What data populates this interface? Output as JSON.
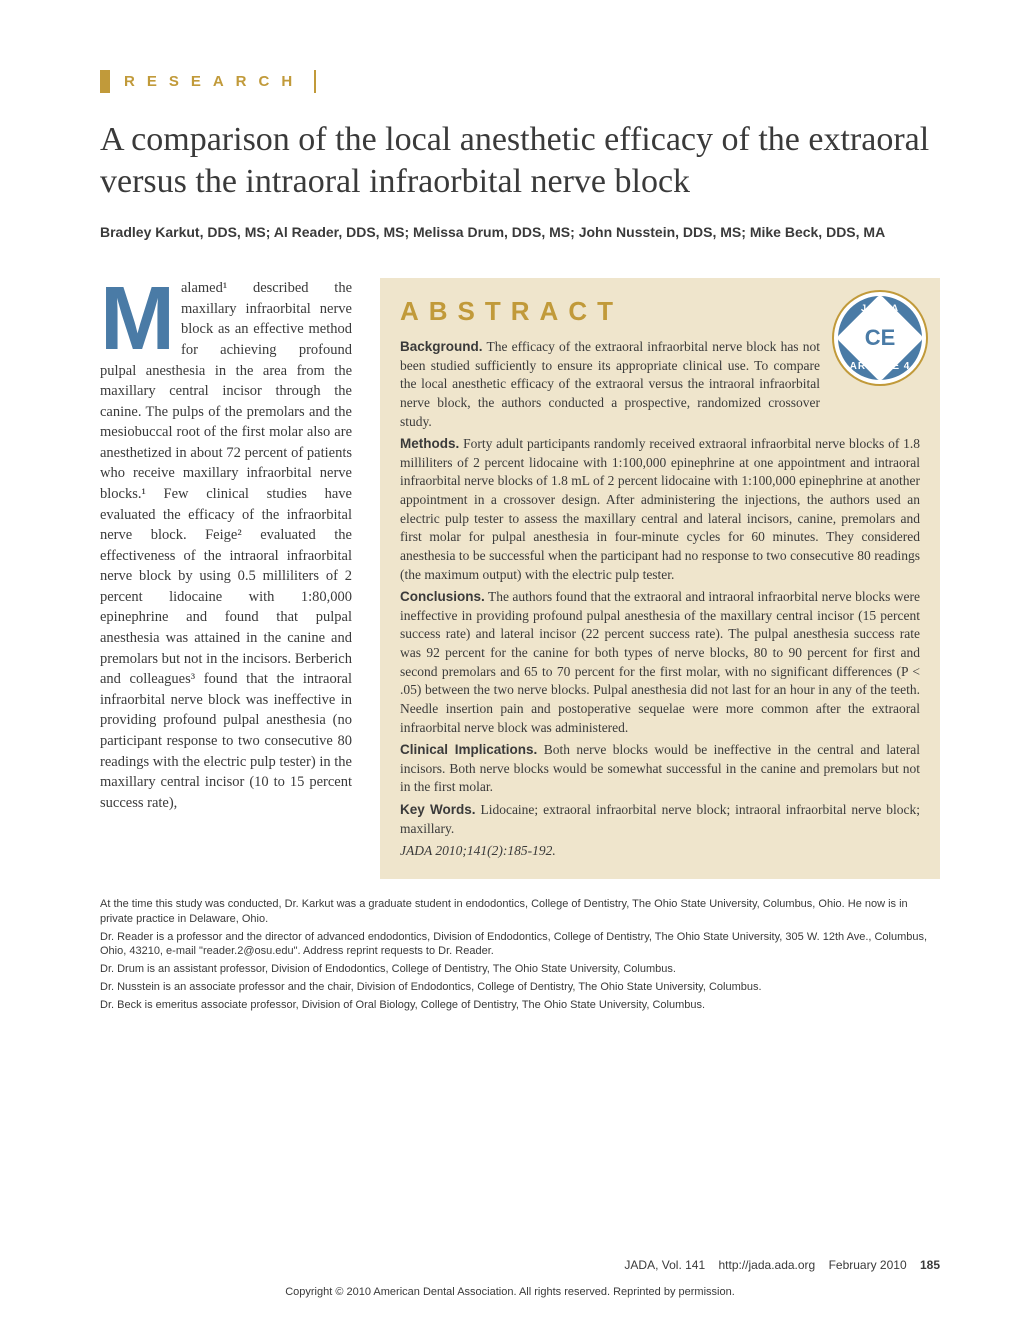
{
  "section_label": "RESEARCH",
  "title": "A comparison of the local anesthetic efficacy of the extraoral versus the intraoral infraorbital nerve block",
  "authors": "Bradley Karkut, DDS, MS; Al Reader, DDS, MS; Melissa Drum, DDS, MS; John Nusstein, DDS, MS; Mike Beck, DDS, MA",
  "drop_cap": "M",
  "body_text": "alamed¹ described the maxillary infraorbital nerve block as an effective method for achieving profound pulpal anesthesia in the area from the maxillary central incisor through the canine. The pulps of the premolars and the mesiobuccal root of the first molar also are anesthetized in about 72 percent of patients who receive maxillary infraorbital nerve blocks.¹ Few clinical studies have evaluated the efficacy of the infraorbital nerve block. Feige² evaluated the effectiveness of the intraoral infraorbital nerve block by using 0.5 milliliters of 2 percent lidocaine with 1:80,000 epinephrine and found that pulpal anesthesia was attained in the canine and premolars but not in the incisors. Berberich and colleagues³ found that the intraoral infraorbital nerve block was ineffective in providing profound pulpal anesthesia (no participant response to two consecutive 80 readings with the electric pulp tester) in the maxillary central incisor (10 to 15 percent success rate),",
  "abstract": {
    "title": "ABSTRACT",
    "background_label": "Background.",
    "background": "The efficacy of the extraoral infraorbital nerve block has not been studied sufficiently to ensure its appropriate clinical use. To compare the local anesthetic efficacy of the extraoral versus the intraoral infraorbital nerve block, the authors conducted a prospective, randomized crossover study.",
    "methods_label": "Methods.",
    "methods": "Forty adult participants randomly received extraoral infraorbital nerve blocks of 1.8 milliliters of 2 percent lidocaine with 1:100,000 epinephrine at one appointment and intraoral infraorbital nerve blocks of 1.8 mL of 2 percent lidocaine with 1:100,000 epinephrine at another appointment in a crossover design. After administering the injections, the authors used an electric pulp tester to assess the maxillary central and lateral incisors, canine, premolars and first molar for pulpal anesthesia in four-minute cycles for 60 minutes. They considered anesthesia to be successful when the participant had no response to two consecutive 80 readings (the maximum output) with the electric pulp tester.",
    "conclusions_label": "Conclusions.",
    "conclusions": "The authors found that the extraoral and intraoral infraorbital nerve blocks were ineffective in providing profound pulpal anesthesia of the maxillary central incisor (15 percent success rate) and lateral incisor (22 percent success rate). The pulpal anesthesia success rate was 92 percent for the canine for both types of nerve blocks, 80 to 90 percent for first and second premolars and 65 to 70 percent for the first molar, with no significant differences (P < .05) between the two nerve blocks. Pulpal anesthesia did not last for an hour in any of the teeth. Needle insertion pain and postoperative sequelae were more common after the extraoral infraorbital nerve block was administered.",
    "clinical_label": "Clinical Implications.",
    "clinical": "Both nerve blocks would be ineffective in the central and lateral incisors. Both nerve blocks would be somewhat successful in the canine and premolars but not in the first molar.",
    "keywords_label": "Key Words.",
    "keywords": "Lidocaine; extraoral infraorbital nerve block; intraoral infraorbital nerve block; maxillary.",
    "citation": "JADA 2010;141(2):185-192."
  },
  "badge": {
    "top": "J A D A",
    "center": "CE",
    "bottom": "ARTICLE 4"
  },
  "footnotes": [
    "At the time this study was conducted, Dr. Karkut was a graduate student in endodontics, College of Dentistry, The Ohio State University, Columbus, Ohio. He now is in private practice in Delaware, Ohio.",
    "Dr. Reader is a professor and the director of advanced endodontics, Division of Endodontics, College of Dentistry, The Ohio State University, 305 W. 12th Ave., Columbus, Ohio, 43210, e-mail \"reader.2@osu.edu\". Address reprint requests to Dr. Reader.",
    "Dr. Drum is an assistant professor, Division of Endodontics, College of Dentistry, The Ohio State University, Columbus.",
    "Dr. Nusstein is an associate professor and the chair, Division of Endodontics, College of Dentistry, The Ohio State University, Columbus.",
    "Dr. Beck is emeritus associate professor, Division of Oral Biology, College of Dentistry, The Ohio State University, Columbus."
  ],
  "footer": {
    "journal": "JADA, Vol. 141",
    "url": "http://jada.ada.org",
    "date": "February 2010",
    "page": "185"
  },
  "copyright": "Copyright © 2010 American Dental Association. All rights reserved. Reprinted by permission.",
  "colors": {
    "accent_gold": "#c19a3a",
    "accent_blue": "#4a7ba6",
    "abstract_bg": "#efe5cc",
    "text": "#3a3a3a"
  }
}
